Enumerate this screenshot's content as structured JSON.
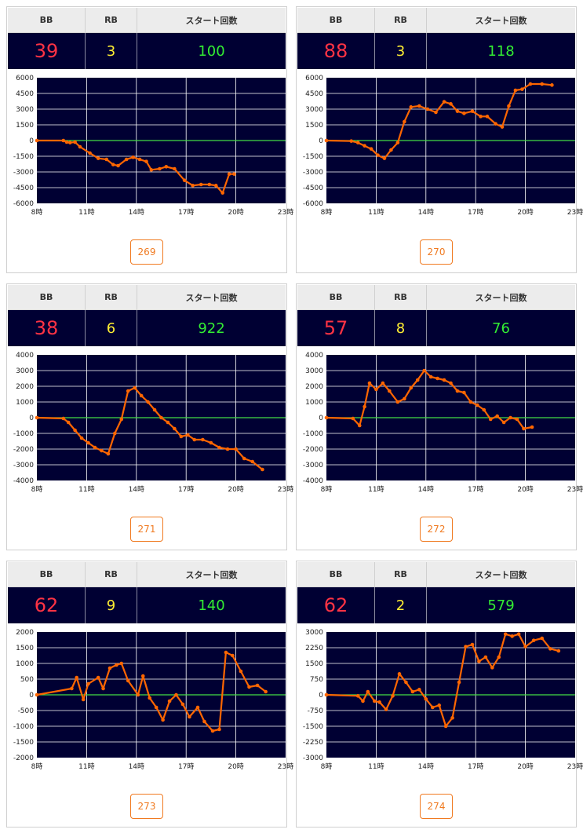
{
  "header": {
    "bb": "BB",
    "rb": "RB",
    "start": "スタート回数"
  },
  "x_ticks": [
    "8時",
    "11時",
    "14時",
    "17時",
    "20時",
    "23時"
  ],
  "colors": {
    "line": "#ff6600",
    "zero": "#44dd44",
    "bg": "#000033",
    "grid": "#ffffff"
  },
  "machines": [
    {
      "bb": "39",
      "rb": "3",
      "start": "100",
      "button": "269",
      "chart_data": {
        "type": "line",
        "x_range": [
          8,
          23
        ],
        "ylim": [
          -6000,
          6000
        ],
        "y_ticks": [
          "6000",
          "4500",
          "3000",
          "1500",
          "0",
          "-1500",
          "-3000",
          "-4500",
          "-6000"
        ],
        "points": [
          [
            8,
            0
          ],
          [
            9.6,
            0
          ],
          [
            9.8,
            -150
          ],
          [
            10,
            -200
          ],
          [
            10.3,
            -150
          ],
          [
            10.6,
            -600
          ],
          [
            11.2,
            -1200
          ],
          [
            11.7,
            -1700
          ],
          [
            12.2,
            -1800
          ],
          [
            12.6,
            -2300
          ],
          [
            12.9,
            -2400
          ],
          [
            13.4,
            -1800
          ],
          [
            13.8,
            -1600
          ],
          [
            14.2,
            -1800
          ],
          [
            14.6,
            -2000
          ],
          [
            14.9,
            -2800
          ],
          [
            15.4,
            -2700
          ],
          [
            15.8,
            -2500
          ],
          [
            16.3,
            -2700
          ],
          [
            16.9,
            -3800
          ],
          [
            17.4,
            -4300
          ],
          [
            17.9,
            -4200
          ],
          [
            18.4,
            -4200
          ],
          [
            18.8,
            -4300
          ],
          [
            19.2,
            -5000
          ],
          [
            19.6,
            -3200
          ],
          [
            19.9,
            -3200
          ]
        ]
      }
    },
    {
      "bb": "88",
      "rb": "3",
      "start": "118",
      "button": "270",
      "chart_data": {
        "type": "line",
        "x_range": [
          8,
          23
        ],
        "ylim": [
          -6000,
          6000
        ],
        "y_ticks": [
          "6000",
          "4500",
          "3000",
          "1500",
          "0",
          "-1500",
          "-3000",
          "-4500",
          "-6000"
        ],
        "points": [
          [
            8,
            0
          ],
          [
            9.5,
            -50
          ],
          [
            9.9,
            -200
          ],
          [
            10.3,
            -500
          ],
          [
            10.7,
            -800
          ],
          [
            11.1,
            -1400
          ],
          [
            11.5,
            -1700
          ],
          [
            11.9,
            -900
          ],
          [
            12.3,
            -200
          ],
          [
            12.7,
            1800
          ],
          [
            13.1,
            3200
          ],
          [
            13.6,
            3300
          ],
          [
            14.1,
            3000
          ],
          [
            14.6,
            2700
          ],
          [
            15.1,
            3700
          ],
          [
            15.5,
            3500
          ],
          [
            15.9,
            2800
          ],
          [
            16.3,
            2600
          ],
          [
            16.8,
            2800
          ],
          [
            17.3,
            2300
          ],
          [
            17.7,
            2300
          ],
          [
            18.2,
            1600
          ],
          [
            18.6,
            1300
          ],
          [
            19.0,
            3300
          ],
          [
            19.4,
            4800
          ],
          [
            19.8,
            4900
          ],
          [
            20.3,
            5400
          ],
          [
            21.0,
            5400
          ],
          [
            21.6,
            5300
          ]
        ]
      }
    },
    {
      "bb": "38",
      "rb": "6",
      "start": "922",
      "button": "271",
      "chart_data": {
        "type": "line",
        "x_range": [
          8,
          23
        ],
        "ylim": [
          -4000,
          4000
        ],
        "y_ticks": [
          "4000",
          "3000",
          "2000",
          "1000",
          "0",
          "-1000",
          "-2000",
          "-3000",
          "-4000"
        ],
        "points": [
          [
            8,
            0
          ],
          [
            9.6,
            -50
          ],
          [
            9.9,
            -300
          ],
          [
            10.3,
            -800
          ],
          [
            10.7,
            -1300
          ],
          [
            11.1,
            -1600
          ],
          [
            11.5,
            -1900
          ],
          [
            11.9,
            -2100
          ],
          [
            12.3,
            -2300
          ],
          [
            12.7,
            -1000
          ],
          [
            13.1,
            -100
          ],
          [
            13.5,
            1700
          ],
          [
            13.9,
            1900
          ],
          [
            14.3,
            1400
          ],
          [
            14.7,
            1000
          ],
          [
            15.1,
            500
          ],
          [
            15.5,
            0
          ],
          [
            15.9,
            -300
          ],
          [
            16.3,
            -700
          ],
          [
            16.7,
            -1200
          ],
          [
            17.1,
            -1100
          ],
          [
            17.5,
            -1400
          ],
          [
            18.0,
            -1400
          ],
          [
            18.5,
            -1600
          ],
          [
            19.0,
            -1900
          ],
          [
            19.5,
            -2000
          ],
          [
            20.0,
            -2000
          ],
          [
            20.5,
            -2600
          ],
          [
            21.0,
            -2800
          ],
          [
            21.6,
            -3300
          ]
        ]
      }
    },
    {
      "bb": "57",
      "rb": "8",
      "start": "76",
      "button": "272",
      "chart_data": {
        "type": "line",
        "x_range": [
          8,
          23
        ],
        "ylim": [
          -4000,
          4000
        ],
        "y_ticks": [
          "4000",
          "3000",
          "2000",
          "1000",
          "0",
          "-1000",
          "-2000",
          "-3000",
          "-4000"
        ],
        "points": [
          [
            8,
            0
          ],
          [
            9.6,
            -50
          ],
          [
            10,
            -500
          ],
          [
            10.3,
            700
          ],
          [
            10.6,
            2200
          ],
          [
            11,
            1800
          ],
          [
            11.4,
            2200
          ],
          [
            11.8,
            1700
          ],
          [
            12.3,
            1000
          ],
          [
            12.7,
            1200
          ],
          [
            13.1,
            1900
          ],
          [
            13.5,
            2400
          ],
          [
            13.9,
            3000
          ],
          [
            14.3,
            2600
          ],
          [
            14.7,
            2500
          ],
          [
            15.1,
            2400
          ],
          [
            15.5,
            2200
          ],
          [
            15.9,
            1700
          ],
          [
            16.3,
            1600
          ],
          [
            16.7,
            1000
          ],
          [
            17.1,
            800
          ],
          [
            17.5,
            500
          ],
          [
            17.9,
            -100
          ],
          [
            18.3,
            100
          ],
          [
            18.7,
            -300
          ],
          [
            19.1,
            0
          ],
          [
            19.5,
            -100
          ],
          [
            19.9,
            -700
          ],
          [
            20.4,
            -600
          ]
        ]
      }
    },
    {
      "bb": "62",
      "rb": "9",
      "start": "140",
      "button": "273",
      "chart_data": {
        "type": "line",
        "x_range": [
          8,
          23
        ],
        "ylim": [
          -2000,
          2000
        ],
        "y_ticks": [
          "2000",
          "1500",
          "1000",
          "500",
          "0",
          "-500",
          "-1000",
          "-1500",
          "-2000"
        ],
        "points": [
          [
            8,
            0
          ],
          [
            10.1,
            200
          ],
          [
            10.4,
            550
          ],
          [
            10.8,
            -150
          ],
          [
            11.1,
            350
          ],
          [
            11.7,
            550
          ],
          [
            12,
            200
          ],
          [
            12.4,
            850
          ],
          [
            12.8,
            950
          ],
          [
            13.1,
            1000
          ],
          [
            13.5,
            450
          ],
          [
            14.1,
            0
          ],
          [
            14.4,
            600
          ],
          [
            14.8,
            -100
          ],
          [
            15.2,
            -400
          ],
          [
            15.6,
            -800
          ],
          [
            16.0,
            -200
          ],
          [
            16.4,
            0
          ],
          [
            16.8,
            -300
          ],
          [
            17.2,
            -700
          ],
          [
            17.7,
            -400
          ],
          [
            18.1,
            -850
          ],
          [
            18.6,
            -1150
          ],
          [
            19.0,
            -1100
          ],
          [
            19.4,
            1350
          ],
          [
            19.8,
            1250
          ],
          [
            20.3,
            750
          ],
          [
            20.8,
            250
          ],
          [
            21.3,
            300
          ],
          [
            21.8,
            100
          ]
        ]
      }
    },
    {
      "bb": "62",
      "rb": "2",
      "start": "579",
      "button": "274",
      "chart_data": {
        "type": "line",
        "x_range": [
          8,
          23
        ],
        "ylim": [
          -3000,
          3000
        ],
        "y_ticks": [
          "3000",
          "2250",
          "1500",
          "750",
          "0",
          "-750",
          "-1500",
          "-2250",
          "-3000"
        ],
        "points": [
          [
            8,
            0
          ],
          [
            9.9,
            -50
          ],
          [
            10.2,
            -300
          ],
          [
            10.5,
            150
          ],
          [
            10.9,
            -300
          ],
          [
            11.2,
            -350
          ],
          [
            11.6,
            -700
          ],
          [
            12.0,
            -50
          ],
          [
            12.4,
            1000
          ],
          [
            12.8,
            600
          ],
          [
            13.2,
            150
          ],
          [
            13.6,
            250
          ],
          [
            14.0,
            -200
          ],
          [
            14.4,
            -600
          ],
          [
            14.8,
            -500
          ],
          [
            15.2,
            -1500
          ],
          [
            15.6,
            -1100
          ],
          [
            16.0,
            600
          ],
          [
            16.4,
            2300
          ],
          [
            16.8,
            2400
          ],
          [
            17.2,
            1600
          ],
          [
            17.6,
            1800
          ],
          [
            18.0,
            1300
          ],
          [
            18.4,
            1800
          ],
          [
            18.8,
            2900
          ],
          [
            19.2,
            2800
          ],
          [
            19.6,
            2900
          ],
          [
            20.0,
            2300
          ],
          [
            20.5,
            2600
          ],
          [
            21.0,
            2700
          ],
          [
            21.5,
            2200
          ],
          [
            22.0,
            2100
          ]
        ]
      }
    }
  ]
}
